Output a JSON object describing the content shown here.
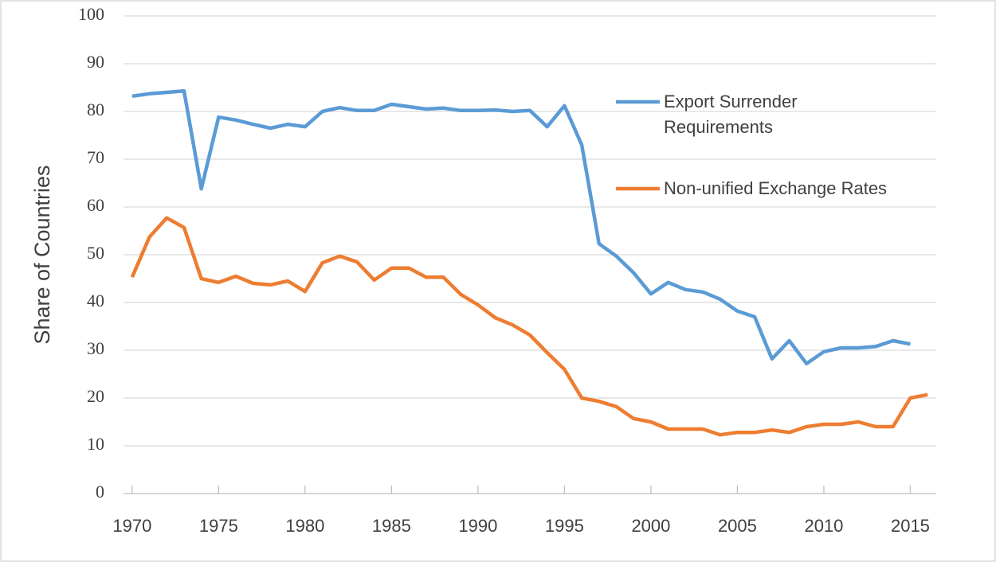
{
  "chart_data": {
    "type": "line",
    "y_label": "Share of Countries",
    "x": [
      1970,
      1971,
      1972,
      1973,
      1974,
      1975,
      1976,
      1977,
      1978,
      1979,
      1980,
      1981,
      1982,
      1983,
      1984,
      1985,
      1986,
      1987,
      1988,
      1989,
      1990,
      1991,
      1992,
      1993,
      1994,
      1995,
      1996,
      1997,
      1998,
      1999,
      2000,
      2001,
      2002,
      2003,
      2004,
      2005,
      2006,
      2007,
      2008,
      2009,
      2010,
      2011,
      2012,
      2013,
      2014,
      2015,
      2016
    ],
    "series": [
      {
        "name": "Export Surrender Requirements",
        "color": "#5b9bd5",
        "values": [
          83.2,
          83.7,
          84,
          84.3,
          63.8,
          78.8,
          78.2,
          77.3,
          76.5,
          77.3,
          76.8,
          80,
          80.8,
          80.2,
          80.2,
          81.5,
          81,
          80.5,
          80.7,
          80.2,
          80.2,
          80.3,
          80,
          80.2,
          76.8,
          81.2,
          73,
          52.3,
          49.7,
          46.2,
          41.8,
          44.2,
          42.7,
          42.2,
          40.7,
          38.2,
          37,
          28.2,
          32,
          27.2,
          29.7,
          30.5,
          30.5,
          30.8,
          32,
          31.3,
          null
        ]
      },
      {
        "name": "Non-unified Exchange Rates",
        "color": "#ed7d31",
        "values": [
          45.3,
          53.7,
          57.7,
          55.7,
          45,
          44.2,
          45.5,
          44,
          43.7,
          44.5,
          42.3,
          48.3,
          49.7,
          48.5,
          44.7,
          47.2,
          47.2,
          45.3,
          45.3,
          41.7,
          39.5,
          36.8,
          35.3,
          33.2,
          29.5,
          26,
          20,
          19.3,
          18.2,
          15.7,
          15,
          13.5,
          13.5,
          13.5,
          12.3,
          12.8,
          12.8,
          13.3,
          12.8,
          14,
          14.5,
          14.5,
          15,
          14,
          14,
          20,
          20.7
        ]
      }
    ],
    "xlim": [
      1969.5,
      2016.5
    ],
    "xticks": [
      1970,
      1975,
      1980,
      1985,
      1990,
      1995,
      2000,
      2005,
      2010,
      2015
    ],
    "ylim": [
      0,
      100
    ],
    "yticks": [
      0,
      10,
      20,
      30,
      40,
      50,
      60,
      70,
      80,
      90,
      100
    ],
    "grid": true,
    "legend": "right"
  }
}
